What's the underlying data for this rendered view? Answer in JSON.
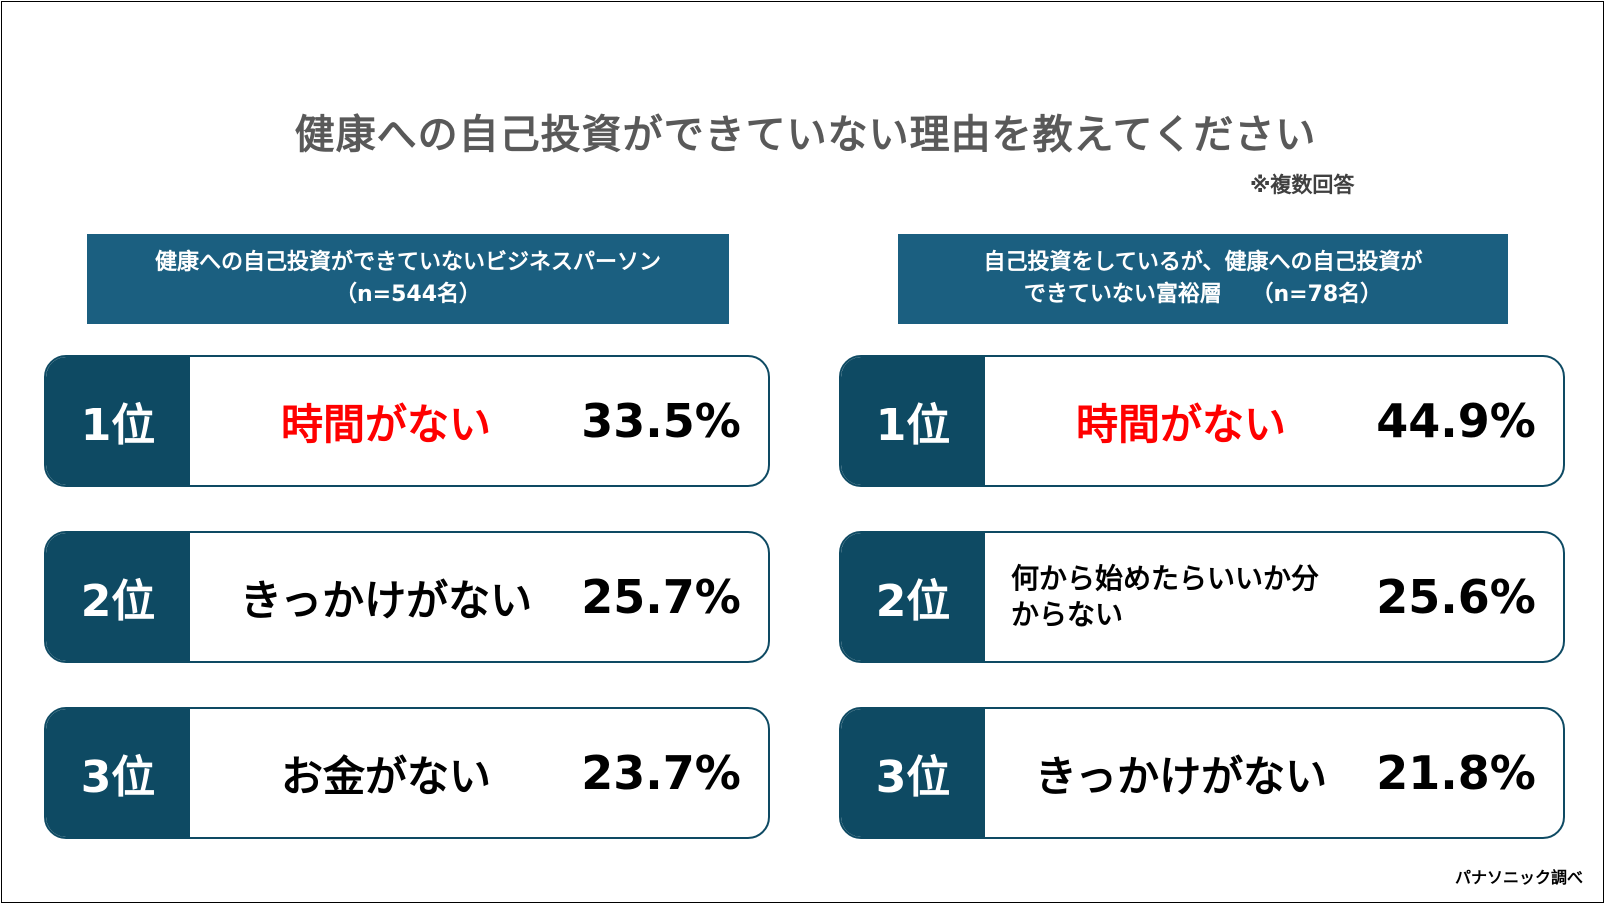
{
  "title": "健康への自己投資ができていない理由を教えてください",
  "note": "※複数回答",
  "left": {
    "header_line1": "健康への自己投資ができていないビジネスパーソン",
    "header_line2": "（n=544名）",
    "items": [
      {
        "rank": "1位",
        "reason": "時間がない",
        "percent": "33.5%"
      },
      {
        "rank": "2位",
        "reason": "きっかけがない",
        "percent": "25.7%"
      },
      {
        "rank": "3位",
        "reason": "お金がない",
        "percent": "23.7%"
      }
    ]
  },
  "right": {
    "header_line1": "自己投資をしているが、健康への自己投資が",
    "header_line2": "できていない富裕層　 （n=78名）",
    "items": [
      {
        "rank": "1位",
        "reason": "時間がない",
        "percent": "44.9%"
      },
      {
        "rank": "2位",
        "reason": "何から始めたらいいか分からない",
        "percent": "25.6%"
      },
      {
        "rank": "3位",
        "reason": "きっかけがない",
        "percent": "21.8%"
      }
    ]
  },
  "credit": "パナソニック調べ",
  "colors": {
    "header_bg": "#1b5f80",
    "badge_bg": "#0e4a63",
    "highlight": "#ff0000",
    "title": "#595959"
  }
}
